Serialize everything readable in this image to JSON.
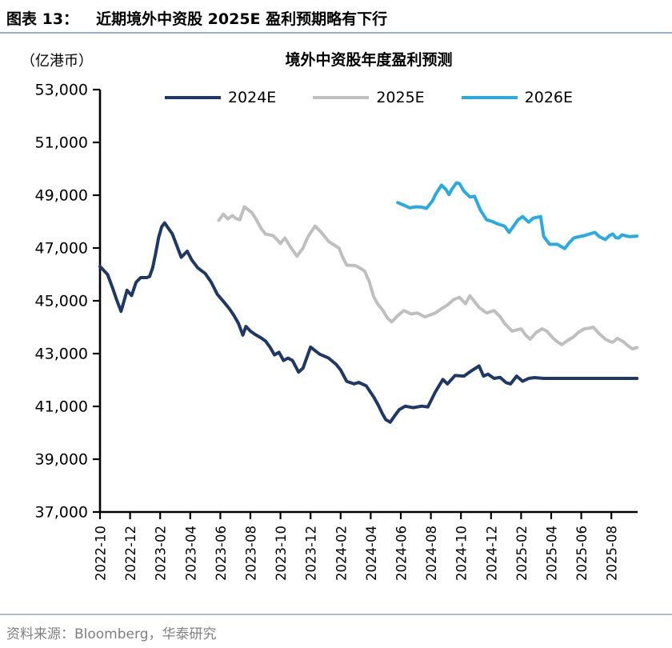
{
  "header": {
    "figure_label": "图表 13：",
    "title": "近期境外中资股 2025E 盈利预期略有下行"
  },
  "footer": {
    "source": "资料来源：Bloomberg，华泰研究"
  },
  "chart_data": {
    "type": "line",
    "title": "境外中资股年度盈利预测",
    "unit_label": "（亿港币）",
    "ylabel": "亿港币",
    "ylim": [
      37000,
      53000
    ],
    "ytick_step": 2000,
    "ytick_labels": [
      "37,000",
      "39,000",
      "41,000",
      "43,000",
      "45,000",
      "47,000",
      "49,000",
      "51,000",
      "53,000"
    ],
    "grid": false,
    "legend_position": "top",
    "x_axis": {
      "start_month": "2022-10",
      "months_total": 36,
      "tick_month_indices": [
        0,
        2,
        4,
        6,
        8,
        10,
        12,
        14,
        16,
        18,
        20,
        22,
        24,
        26,
        28,
        30,
        32,
        34
      ],
      "tick_labels": [
        "2022-10",
        "2022-12",
        "2023-02",
        "2023-04",
        "2023-06",
        "2023-08",
        "2023-10",
        "2023-12",
        "2024-02",
        "2024-04",
        "2024-06",
        "2024-08",
        "2024-10",
        "2024-12",
        "2025-02",
        "2025-04",
        "2025-06",
        "2025-08"
      ]
    },
    "legend": [
      {
        "name": "2024E",
        "color": "#1F3864"
      },
      {
        "name": "2025E",
        "color": "#BFBFBF"
      },
      {
        "name": "2026E",
        "color": "#29ABE2"
      }
    ],
    "series": [
      {
        "name": "2024E",
        "color": "#1F3864",
        "points": [
          [
            0,
            46300
          ],
          [
            0.5,
            46000
          ],
          [
            0.8,
            45550
          ],
          [
            1.1,
            45050
          ],
          [
            1.4,
            44600
          ],
          [
            1.6,
            45000
          ],
          [
            1.8,
            45400
          ],
          [
            2.1,
            45200
          ],
          [
            2.4,
            45700
          ],
          [
            2.7,
            45880
          ],
          [
            3.1,
            45880
          ],
          [
            3.3,
            45920
          ],
          [
            3.5,
            46250
          ],
          [
            3.7,
            46800
          ],
          [
            3.9,
            47400
          ],
          [
            4.1,
            47800
          ],
          [
            4.3,
            47950
          ],
          [
            4.6,
            47700
          ],
          [
            4.8,
            47550
          ],
          [
            5.1,
            47100
          ],
          [
            5.4,
            46650
          ],
          [
            5.8,
            46880
          ],
          [
            6.1,
            46550
          ],
          [
            6.5,
            46250
          ],
          [
            7,
            46030
          ],
          [
            7.4,
            45700
          ],
          [
            7.8,
            45250
          ],
          [
            8.2,
            44980
          ],
          [
            8.6,
            44700
          ],
          [
            8.9,
            44450
          ],
          [
            9.2,
            44150
          ],
          [
            9.5,
            43700
          ],
          [
            9.7,
            44030
          ],
          [
            10,
            43850
          ],
          [
            10.3,
            43730
          ],
          [
            10.7,
            43600
          ],
          [
            11,
            43480
          ],
          [
            11.3,
            43250
          ],
          [
            11.6,
            42950
          ],
          [
            11.9,
            43050
          ],
          [
            12.2,
            42740
          ],
          [
            12.5,
            42830
          ],
          [
            12.8,
            42740
          ],
          [
            13.2,
            42300
          ],
          [
            13.5,
            42450
          ],
          [
            14,
            43250
          ],
          [
            14.6,
            42980
          ],
          [
            15.2,
            42830
          ],
          [
            15.7,
            42590
          ],
          [
            16,
            42380
          ],
          [
            16.4,
            41950
          ],
          [
            16.9,
            41850
          ],
          [
            17.2,
            41910
          ],
          [
            17.7,
            41780
          ],
          [
            18.2,
            41350
          ],
          [
            18.5,
            41050
          ],
          [
            18.8,
            40700
          ],
          [
            19,
            40500
          ],
          [
            19.3,
            40400
          ],
          [
            19.6,
            40650
          ],
          [
            19.9,
            40880
          ],
          [
            20.3,
            41010
          ],
          [
            20.8,
            40950
          ],
          [
            21.4,
            41010
          ],
          [
            21.8,
            40980
          ],
          [
            22.3,
            41550
          ],
          [
            22.8,
            42020
          ],
          [
            23.1,
            41850
          ],
          [
            23.6,
            42170
          ],
          [
            24.2,
            42150
          ],
          [
            24.7,
            42350
          ],
          [
            25.2,
            42530
          ],
          [
            25.5,
            42150
          ],
          [
            25.8,
            42220
          ],
          [
            26.2,
            42060
          ],
          [
            26.6,
            42100
          ],
          [
            27,
            41900
          ],
          [
            27.3,
            41850
          ],
          [
            27.7,
            42150
          ],
          [
            28.1,
            41950
          ],
          [
            28.5,
            42060
          ],
          [
            28.9,
            42090
          ],
          [
            29.5,
            42060
          ],
          [
            35.7,
            42060
          ]
        ]
      },
      {
        "name": "2025E",
        "color": "#BFBFBF",
        "points": [
          [
            7.9,
            48050
          ],
          [
            8.2,
            48280
          ],
          [
            8.5,
            48100
          ],
          [
            8.8,
            48230
          ],
          [
            9,
            48130
          ],
          [
            9.3,
            48070
          ],
          [
            9.6,
            48560
          ],
          [
            10.1,
            48340
          ],
          [
            10.4,
            48070
          ],
          [
            10.7,
            47750
          ],
          [
            11,
            47530
          ],
          [
            11.5,
            47470
          ],
          [
            11.8,
            47300
          ],
          [
            12,
            47170
          ],
          [
            12.3,
            47380
          ],
          [
            12.7,
            47000
          ],
          [
            13.1,
            46690
          ],
          [
            13.5,
            47000
          ],
          [
            13.8,
            47400
          ],
          [
            14.3,
            47830
          ],
          [
            14.7,
            47600
          ],
          [
            15.2,
            47250
          ],
          [
            15.6,
            47100
          ],
          [
            15.9,
            46990
          ],
          [
            16.1,
            46690
          ],
          [
            16.4,
            46350
          ],
          [
            17,
            46330
          ],
          [
            17.4,
            46200
          ],
          [
            17.6,
            46120
          ],
          [
            17.9,
            45730
          ],
          [
            18.2,
            45150
          ],
          [
            18.5,
            44850
          ],
          [
            18.8,
            44650
          ],
          [
            19.1,
            44350
          ],
          [
            19.4,
            44200
          ],
          [
            19.8,
            44440
          ],
          [
            20.2,
            44630
          ],
          [
            20.7,
            44500
          ],
          [
            21.1,
            44540
          ],
          [
            21.6,
            44390
          ],
          [
            22.3,
            44540
          ],
          [
            22.7,
            44700
          ],
          [
            23.1,
            44840
          ],
          [
            23.5,
            45040
          ],
          [
            23.9,
            45130
          ],
          [
            24.3,
            44890
          ],
          [
            24.6,
            45190
          ],
          [
            25.2,
            44750
          ],
          [
            25.7,
            44540
          ],
          [
            26.2,
            44630
          ],
          [
            26.6,
            44400
          ],
          [
            26.9,
            44150
          ],
          [
            27.4,
            43850
          ],
          [
            28,
            43940
          ],
          [
            28.3,
            43700
          ],
          [
            28.6,
            43550
          ],
          [
            29,
            43800
          ],
          [
            29.4,
            43940
          ],
          [
            29.7,
            43850
          ],
          [
            30.1,
            43600
          ],
          [
            30.4,
            43450
          ],
          [
            30.7,
            43340
          ],
          [
            31.1,
            43500
          ],
          [
            31.5,
            43640
          ],
          [
            31.8,
            43800
          ],
          [
            32.2,
            43940
          ],
          [
            32.5,
            43960
          ],
          [
            32.8,
            44000
          ],
          [
            33.2,
            43750
          ],
          [
            33.6,
            43550
          ],
          [
            33.9,
            43460
          ],
          [
            34.1,
            43430
          ],
          [
            34.4,
            43580
          ],
          [
            34.8,
            43450
          ],
          [
            35.1,
            43300
          ],
          [
            35.4,
            43180
          ],
          [
            35.7,
            43230
          ]
        ]
      },
      {
        "name": "2026E",
        "color": "#29ABE2",
        "points": [
          [
            19.8,
            48720
          ],
          [
            20.2,
            48620
          ],
          [
            20.6,
            48520
          ],
          [
            21,
            48560
          ],
          [
            21.4,
            48550
          ],
          [
            21.7,
            48500
          ],
          [
            22.1,
            48780
          ],
          [
            22.3,
            49020
          ],
          [
            22.7,
            49380
          ],
          [
            23,
            49220
          ],
          [
            23.2,
            49020
          ],
          [
            23.4,
            49230
          ],
          [
            23.7,
            49470
          ],
          [
            23.9,
            49440
          ],
          [
            24.2,
            49150
          ],
          [
            24.6,
            48930
          ],
          [
            24.9,
            48960
          ],
          [
            25.3,
            48430
          ],
          [
            25.7,
            48070
          ],
          [
            26.1,
            48000
          ],
          [
            26.4,
            47920
          ],
          [
            26.9,
            47830
          ],
          [
            27.2,
            47590
          ],
          [
            27.8,
            48070
          ],
          [
            28.1,
            48190
          ],
          [
            28.5,
            47980
          ],
          [
            28.8,
            48130
          ],
          [
            29.3,
            48190
          ],
          [
            29.5,
            47440
          ],
          [
            29.9,
            47140
          ],
          [
            30.4,
            47140
          ],
          [
            30.9,
            46980
          ],
          [
            31.2,
            47200
          ],
          [
            31.5,
            47380
          ],
          [
            31.8,
            47420
          ],
          [
            32.2,
            47470
          ],
          [
            32.5,
            47520
          ],
          [
            32.9,
            47590
          ],
          [
            33.2,
            47430
          ],
          [
            33.6,
            47320
          ],
          [
            33.9,
            47480
          ],
          [
            34.1,
            47530
          ],
          [
            34.3,
            47390
          ],
          [
            34.5,
            47380
          ],
          [
            34.7,
            47500
          ],
          [
            34.9,
            47470
          ],
          [
            35.2,
            47430
          ],
          [
            35.7,
            47450
          ]
        ]
      }
    ]
  }
}
